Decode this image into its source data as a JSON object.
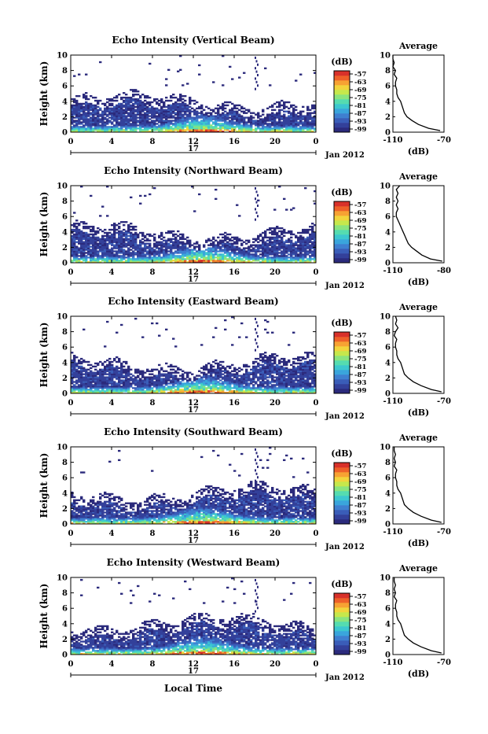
{
  "chart_data": [
    {
      "type": "heatmap",
      "title": "Echo Intensity (Vertical Beam)",
      "ylabel": "Height (km)",
      "xlim": [
        0,
        24
      ],
      "ylim": [
        0,
        10
      ],
      "x_ticks": [
        "0",
        "4",
        "8",
        "12",
        "16",
        "20",
        "0"
      ],
      "y_ticks": [
        "0",
        "2",
        "4",
        "6",
        "8",
        "10"
      ],
      "day_label": "17",
      "date_label": "Jan 2012",
      "colorbar": {
        "unit": "(dB)",
        "ticks": [
          "-57",
          "-63",
          "-69",
          "-75",
          "-81",
          "-87",
          "-93",
          "-99"
        ]
      },
      "profile": {
        "title": "Average",
        "xlabel": "(dB)",
        "xlim": [
          -110,
          -70
        ],
        "x_ticks": [
          "-110",
          "-70"
        ],
        "ylim": [
          0,
          10
        ],
        "y_ticks": [
          "0",
          "2",
          "4",
          "6",
          "8",
          "10"
        ],
        "points": [
          [
            -73,
            0.2
          ],
          [
            -82,
            0.5
          ],
          [
            -90,
            1.0
          ],
          [
            -95,
            1.5
          ],
          [
            -99,
            2.0
          ],
          [
            -101,
            2.5
          ],
          [
            -102,
            3.0
          ],
          [
            -103,
            3.5
          ],
          [
            -104,
            4.0
          ],
          [
            -106,
            4.5
          ],
          [
            -107,
            5.0
          ],
          [
            -107,
            5.5
          ],
          [
            -108,
            6.0
          ],
          [
            -108,
            6.5
          ],
          [
            -107,
            7.0
          ],
          [
            -109,
            7.5
          ],
          [
            -108,
            8.0
          ],
          [
            -110,
            8.5
          ],
          [
            -109,
            9.0
          ],
          [
            -110,
            9.5
          ],
          [
            -110,
            10.0
          ]
        ]
      }
    },
    {
      "type": "heatmap",
      "title": "Echo Intensity (Northward Beam)",
      "ylabel": "Height (km)",
      "xlim": [
        0,
        24
      ],
      "ylim": [
        0,
        10
      ],
      "x_ticks": [
        "0",
        "4",
        "8",
        "12",
        "16",
        "20",
        "0"
      ],
      "y_ticks": [
        "0",
        "2",
        "4",
        "6",
        "8",
        "10"
      ],
      "day_label": "17",
      "date_label": "Jan 2012",
      "colorbar": {
        "unit": "(dB)",
        "ticks": [
          "-57",
          "-63",
          "-69",
          "-75",
          "-81",
          "-87",
          "-93",
          "-99"
        ]
      },
      "profile": {
        "title": "Average",
        "xlabel": "(dB)",
        "xlim": [
          -110,
          -80
        ],
        "x_ticks": [
          "-110",
          "-80"
        ],
        "ylim": [
          0,
          10
        ],
        "y_ticks": [
          "0",
          "2",
          "4",
          "6",
          "8",
          "10"
        ],
        "points": [
          [
            -81,
            0.2
          ],
          [
            -88,
            0.5
          ],
          [
            -93,
            1.0
          ],
          [
            -96,
            1.5
          ],
          [
            -99,
            2.0
          ],
          [
            -101,
            2.5
          ],
          [
            -102,
            3.0
          ],
          [
            -103,
            3.5
          ],
          [
            -104,
            4.0
          ],
          [
            -105,
            4.5
          ],
          [
            -106,
            5.0
          ],
          [
            -107,
            5.5
          ],
          [
            -108,
            6.0
          ],
          [
            -108,
            6.5
          ],
          [
            -107,
            7.0
          ],
          [
            -108,
            7.5
          ],
          [
            -107,
            8.0
          ],
          [
            -108,
            8.5
          ],
          [
            -107,
            9.0
          ],
          [
            -108,
            9.5
          ],
          [
            -106,
            10.0
          ]
        ]
      }
    },
    {
      "type": "heatmap",
      "title": "Echo Intensity (Eastward Beam)",
      "ylabel": "Height (km)",
      "xlim": [
        0,
        24
      ],
      "ylim": [
        0,
        10
      ],
      "x_ticks": [
        "0",
        "4",
        "8",
        "12",
        "16",
        "20",
        "0"
      ],
      "y_ticks": [
        "0",
        "2",
        "4",
        "6",
        "8",
        "10"
      ],
      "day_label": "17",
      "date_label": "Jan 2012",
      "colorbar": {
        "unit": "(dB)",
        "ticks": [
          "-57",
          "-63",
          "-69",
          "-75",
          "-81",
          "-87",
          "-93",
          "-99"
        ]
      },
      "profile": {
        "title": "Average",
        "xlabel": "(dB)",
        "xlim": [
          -110,
          -70
        ],
        "x_ticks": [
          "-110",
          "-70"
        ],
        "ylim": [
          0,
          10
        ],
        "y_ticks": [
          "0",
          "2",
          "4",
          "6",
          "8",
          "10"
        ],
        "points": [
          [
            -72,
            0.2
          ],
          [
            -80,
            0.5
          ],
          [
            -88,
            1.0
          ],
          [
            -94,
            1.5
          ],
          [
            -98,
            2.0
          ],
          [
            -101,
            2.5
          ],
          [
            -102,
            3.0
          ],
          [
            -103,
            3.5
          ],
          [
            -104,
            4.0
          ],
          [
            -106,
            4.5
          ],
          [
            -107,
            5.0
          ],
          [
            -107,
            5.5
          ],
          [
            -108,
            6.0
          ],
          [
            -108,
            6.5
          ],
          [
            -107,
            7.0
          ],
          [
            -109,
            7.5
          ],
          [
            -108,
            8.0
          ],
          [
            -106,
            8.5
          ],
          [
            -108,
            9.0
          ],
          [
            -107,
            9.5
          ],
          [
            -108,
            10.0
          ]
        ]
      }
    },
    {
      "type": "heatmap",
      "title": "Echo Intensity (Southward Beam)",
      "ylabel": "Height (km)",
      "xlim": [
        0,
        24
      ],
      "ylim": [
        0,
        10
      ],
      "x_ticks": [
        "0",
        "4",
        "8",
        "12",
        "16",
        "20",
        "0"
      ],
      "y_ticks": [
        "0",
        "2",
        "4",
        "6",
        "8",
        "10"
      ],
      "day_label": "17",
      "date_label": "Jan 2012",
      "colorbar": {
        "unit": "(dB)",
        "ticks": [
          "-57",
          "-63",
          "-69",
          "-75",
          "-81",
          "-87",
          "-93",
          "-99"
        ]
      },
      "profile": {
        "title": "Average",
        "xlabel": "(dB)",
        "xlim": [
          -110,
          -70
        ],
        "x_ticks": [
          "-110",
          "-70"
        ],
        "ylim": [
          0,
          10
        ],
        "y_ticks": [
          "0",
          "2",
          "4",
          "6",
          "8",
          "10"
        ],
        "points": [
          [
            -72,
            0.2
          ],
          [
            -80,
            0.5
          ],
          [
            -88,
            1.0
          ],
          [
            -94,
            1.5
          ],
          [
            -98,
            2.0
          ],
          [
            -101,
            2.5
          ],
          [
            -102,
            3.0
          ],
          [
            -103,
            3.5
          ],
          [
            -104,
            4.0
          ],
          [
            -106,
            4.5
          ],
          [
            -107,
            5.0
          ],
          [
            -107,
            5.5
          ],
          [
            -108,
            6.0
          ],
          [
            -108,
            6.5
          ],
          [
            -107,
            7.0
          ],
          [
            -109,
            7.5
          ],
          [
            -108,
            8.0
          ],
          [
            -109,
            8.5
          ],
          [
            -108,
            9.0
          ],
          [
            -109,
            9.5
          ],
          [
            -109,
            10.0
          ]
        ]
      }
    },
    {
      "type": "heatmap",
      "title": "Echo Intensity (Westward Beam)",
      "ylabel": "Height (km)",
      "xlabel": "Local Time",
      "xlim": [
        0,
        24
      ],
      "ylim": [
        0,
        10
      ],
      "x_ticks": [
        "0",
        "4",
        "8",
        "12",
        "16",
        "20",
        "0"
      ],
      "y_ticks": [
        "0",
        "2",
        "4",
        "6",
        "8",
        "10"
      ],
      "day_label": "17",
      "date_label": "Jan 2012",
      "colorbar": {
        "unit": "(dB)",
        "ticks": [
          "-57",
          "-63",
          "-69",
          "-75",
          "-81",
          "-87",
          "-93",
          "-99"
        ]
      },
      "profile": {
        "title": "Average",
        "xlabel": "(dB)",
        "xlim": [
          -110,
          -70
        ],
        "x_ticks": [
          "-110",
          "-70"
        ],
        "ylim": [
          0,
          10
        ],
        "y_ticks": [
          "0",
          "2",
          "4",
          "6",
          "8",
          "10"
        ],
        "points": [
          [
            -72,
            0.2
          ],
          [
            -80,
            0.5
          ],
          [
            -88,
            1.0
          ],
          [
            -94,
            1.5
          ],
          [
            -98,
            2.0
          ],
          [
            -101,
            2.5
          ],
          [
            -102,
            3.0
          ],
          [
            -103,
            3.5
          ],
          [
            -104,
            4.0
          ],
          [
            -106,
            4.5
          ],
          [
            -107,
            5.0
          ],
          [
            -107,
            5.5
          ],
          [
            -108,
            6.0
          ],
          [
            -108,
            6.5
          ],
          [
            -107,
            7.0
          ],
          [
            -109,
            7.5
          ],
          [
            -108,
            8.0
          ],
          [
            -109,
            8.5
          ],
          [
            -108,
            9.0
          ],
          [
            -109,
            9.5
          ],
          [
            -109,
            10.0
          ]
        ]
      }
    }
  ]
}
